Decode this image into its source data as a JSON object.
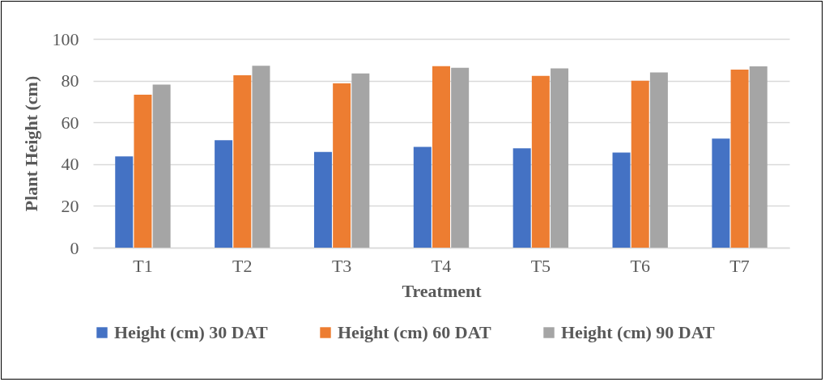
{
  "chart_data": {
    "type": "bar",
    "xlabel": "Treatment",
    "ylabel": "Plant Height (cm)",
    "categories": [
      "T1",
      "T2",
      "T3",
      "T4",
      "T5",
      "T6",
      "T7"
    ],
    "series": [
      {
        "name": "Height (cm) 30 DAT",
        "color": "#4472c4",
        "values": [
          43.7,
          51.5,
          45.8,
          48.3,
          47.6,
          45.5,
          52.2
        ]
      },
      {
        "name": "Height (cm) 60 DAT",
        "color": "#ed7d31",
        "values": [
          73.3,
          82.6,
          78.7,
          86.9,
          82.3,
          79.9,
          85.3
        ]
      },
      {
        "name": "Height (cm) 90 DAT",
        "color": "#a5a5a5",
        "values": [
          78.1,
          87.1,
          83.4,
          86.1,
          85.9,
          83.9,
          86.8
        ]
      }
    ],
    "ylim": [
      0,
      100
    ],
    "yticks": [
      0,
      20,
      40,
      60,
      80,
      100
    ],
    "grid": "y",
    "legend": "bottom"
  }
}
